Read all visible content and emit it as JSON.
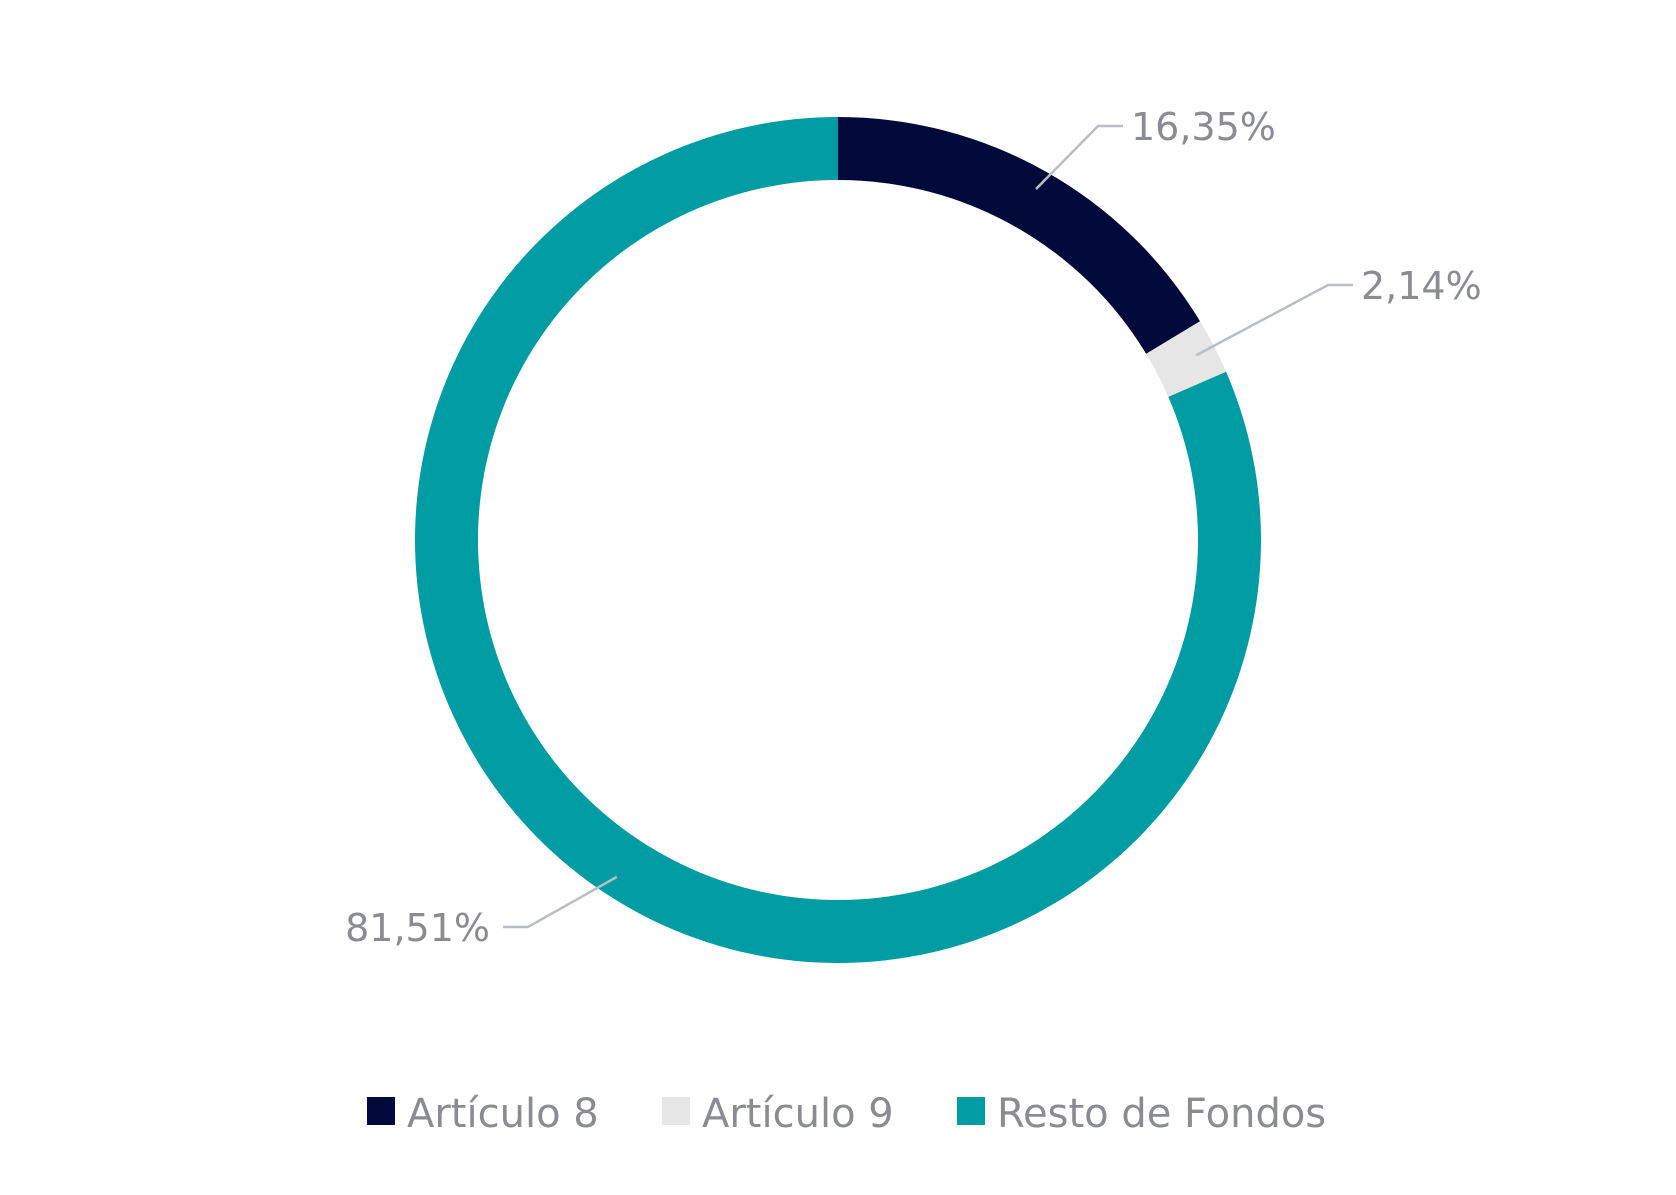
{
  "chart_data": {
    "type": "pie",
    "variant": "donut",
    "title": "",
    "legend_position": "bottom",
    "series": [
      {
        "name": "Artículo 8",
        "value": 16.35,
        "label": "16,35%",
        "color": "#000a3a"
      },
      {
        "name": "Artículo 9",
        "value": 2.14,
        "label": "2,14%",
        "color": "#e6e6e7"
      },
      {
        "name": "Resto de Fondos",
        "value": 81.51,
        "label": "81,51%",
        "color": "#009ca3"
      }
    ],
    "leader_line_color": "#b9bdc6"
  }
}
